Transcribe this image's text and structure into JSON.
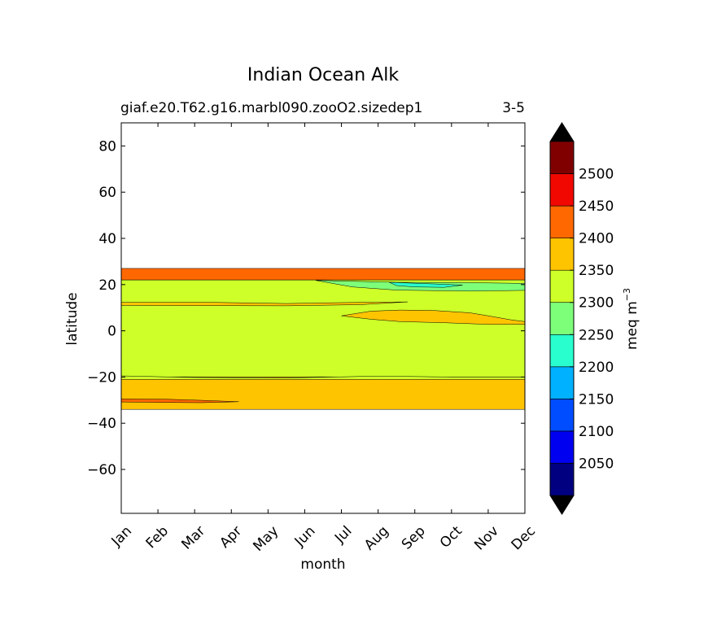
{
  "chart_data": {
    "type": "contour",
    "title": "Indian Ocean Alk",
    "subtitle_left": "giaf.e20.T62.g16.marbl090.zooO2.sizedep1",
    "subtitle_right": "3-5",
    "xlabel": "month",
    "ylabel": "latitude",
    "x_ticks": [
      "Jan",
      "Feb",
      "Mar",
      "Apr",
      "May",
      "Jun",
      "Jul",
      "Aug",
      "Sep",
      "Oct",
      "Nov",
      "Dec"
    ],
    "y_ticks": [
      "80",
      "60",
      "40",
      "20",
      "0",
      "−20",
      "−40",
      "−60"
    ],
    "y_tick_values": [
      80,
      60,
      40,
      20,
      0,
      -20,
      -40,
      -60
    ],
    "xlim": [
      1,
      12
    ],
    "ylim": [
      -79,
      90
    ],
    "colorbar": {
      "label": "meq m",
      "label_superscript": "−3",
      "levels": [
        2000,
        2050,
        2100,
        2150,
        2200,
        2250,
        2300,
        2350,
        2400,
        2450,
        2500,
        2550
      ],
      "tick_labels": [
        "2050",
        "2100",
        "2150",
        "2200",
        "2250",
        "2300",
        "2350",
        "2400",
        "2450",
        "2500"
      ],
      "tick_values": [
        2050,
        2100,
        2150,
        2200,
        2250,
        2300,
        2350,
        2400,
        2450,
        2500
      ],
      "colors": [
        "#000080",
        "#0000f1",
        "#004dff",
        "#00b1ff",
        "#29ffce",
        "#7dff7a",
        "#ceff29",
        "#ffc400",
        "#ff6800",
        "#f10800",
        "#800000"
      ],
      "extend": "both",
      "extend_color": "#000000"
    },
    "bands": [
      {
        "lat_min": 22,
        "lat_max": 27,
        "value": 2425
      },
      {
        "lat_min": -20,
        "lat_max": 22,
        "value": 2325
      },
      {
        "lat_min": -34,
        "lat_max": -20,
        "value": 2375
      }
    ],
    "regions": [
      {
        "value": 2275,
        "points": [
          [
            6.3,
            21.8
          ],
          [
            8.5,
            21.0
          ],
          [
            10.5,
            20.8
          ],
          [
            12,
            20.5
          ],
          [
            12,
            17.5
          ],
          [
            10.5,
            17.2
          ],
          [
            8.5,
            17.6
          ],
          [
            7.3,
            19.0
          ],
          [
            6.3,
            21.8
          ]
        ]
      },
      {
        "value": 2225,
        "points": [
          [
            8.3,
            21.0
          ],
          [
            9.5,
            20.3
          ],
          [
            10.3,
            19.8
          ],
          [
            9.8,
            18.8
          ],
          [
            9.0,
            19.0
          ],
          [
            8.5,
            19.6
          ],
          [
            8.3,
            21.0
          ]
        ]
      },
      {
        "value": 2375,
        "points": [
          [
            7.0,
            6.5
          ],
          [
            7.8,
            8.5
          ],
          [
            8.6,
            9.0
          ],
          [
            9.5,
            8.8
          ],
          [
            10.5,
            7.8
          ],
          [
            11.0,
            6.5
          ],
          [
            11.6,
            4.8
          ],
          [
            12,
            4.0
          ],
          [
            12,
            2.8
          ],
          [
            11.0,
            2.8
          ],
          [
            9.8,
            3.5
          ],
          [
            8.6,
            4.0
          ],
          [
            7.8,
            5.0
          ],
          [
            7.0,
            6.5
          ]
        ]
      },
      {
        "value": 2375,
        "points": [
          [
            1,
            12.3
          ],
          [
            3.5,
            12.3
          ],
          [
            5.5,
            11.8
          ],
          [
            7.0,
            12.2
          ],
          [
            8.8,
            12.5
          ],
          [
            7.5,
            11.3
          ],
          [
            5.5,
            10.8
          ],
          [
            3.5,
            10.9
          ],
          [
            1,
            11.0
          ]
        ]
      },
      {
        "value": 2425,
        "points": [
          [
            1,
            -29.5
          ],
          [
            2.2,
            -29.6
          ],
          [
            3.2,
            -30.1
          ],
          [
            4.2,
            -30.7
          ],
          [
            3.2,
            -31.1
          ],
          [
            2.2,
            -31.0
          ],
          [
            1,
            -30.8
          ]
        ]
      },
      {
        "value": 2325,
        "points": [
          [
            1,
            -19.5
          ],
          [
            3.0,
            -20.2
          ],
          [
            5.5,
            -20.4
          ],
          [
            8.0,
            -19.6
          ],
          [
            10.0,
            -20.0
          ],
          [
            12,
            -20.0
          ],
          [
            12,
            -21.0
          ],
          [
            1,
            -21.0
          ]
        ]
      }
    ]
  }
}
